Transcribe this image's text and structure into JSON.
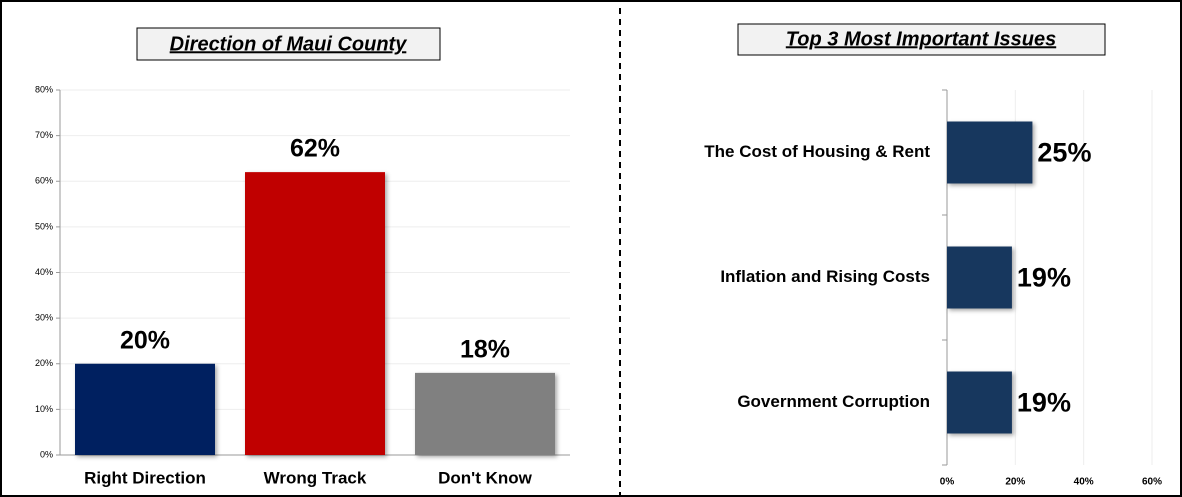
{
  "chart_data": [
    {
      "type": "bar",
      "title": "Direction of Maui County",
      "categories": [
        "Right Direction",
        "Wrong Track",
        "Don't Know"
      ],
      "values": [
        20,
        62,
        18
      ],
      "value_labels": [
        "20%",
        "62%",
        "18%"
      ],
      "colors": [
        "#002060",
        "#c00000",
        "#808080"
      ],
      "ylim": [
        0,
        80
      ],
      "yticks": [
        {
          "value": 0,
          "label": "0%"
        },
        {
          "value": 10,
          "label": "10%"
        },
        {
          "value": 20,
          "label": "20%"
        },
        {
          "value": 30,
          "label": "30%"
        },
        {
          "value": 40,
          "label": "40%"
        },
        {
          "value": 50,
          "label": "50%"
        },
        {
          "value": 60,
          "label": "60%"
        },
        {
          "value": 70,
          "label": "70%"
        },
        {
          "value": 80,
          "label": "80%"
        }
      ],
      "grid": true
    },
    {
      "type": "barh",
      "title": "Top 3 Most Important Issues",
      "categories": [
        "The Cost of Housing & Rent",
        "Inflation and Rising Costs",
        "Government Corruption"
      ],
      "values": [
        25,
        19,
        19
      ],
      "value_labels": [
        "25%",
        "19%",
        "19%"
      ],
      "color": "#17375e",
      "xlim": [
        0,
        60
      ],
      "xticks": [
        {
          "value": 0,
          "label": "0%"
        },
        {
          "value": 20,
          "label": "20%"
        },
        {
          "value": 40,
          "label": "40%"
        },
        {
          "value": 60,
          "label": "60%"
        }
      ],
      "grid": true
    }
  ]
}
